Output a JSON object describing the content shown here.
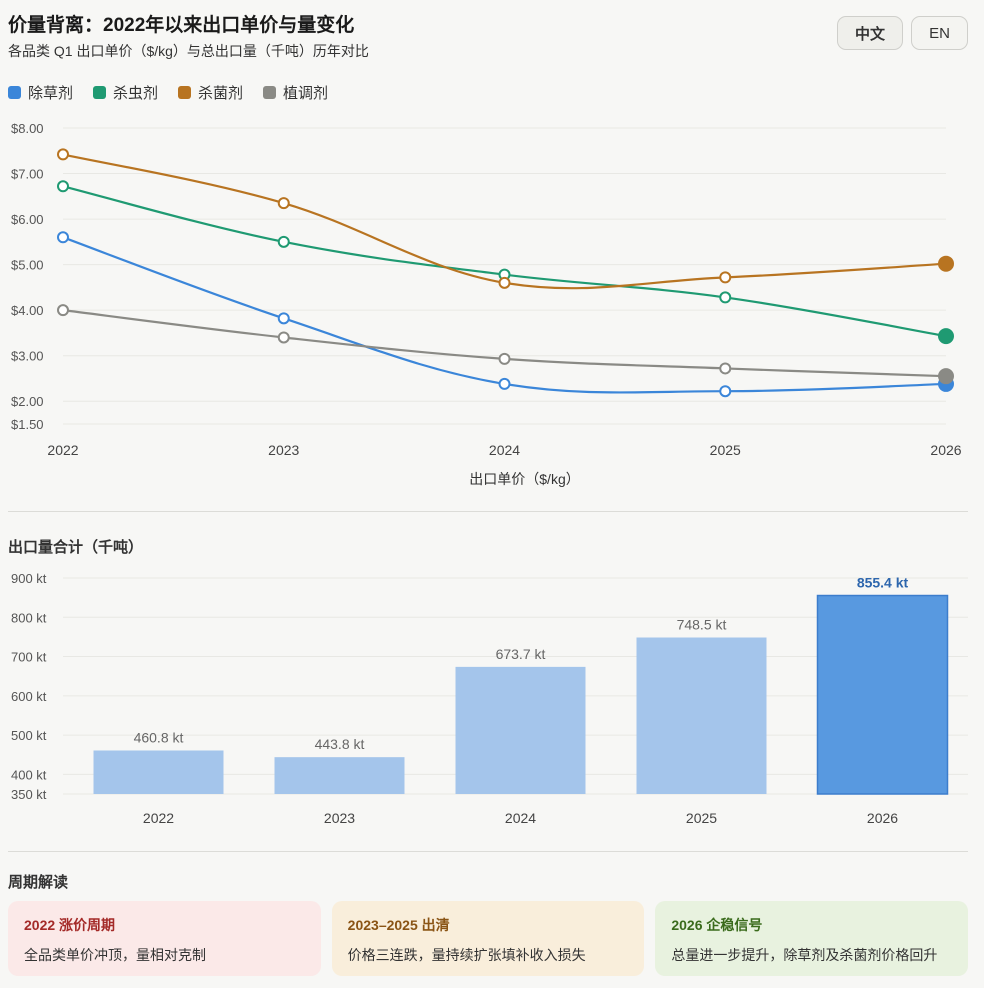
{
  "header": {
    "title": "价量背离：2022年以来出口单价与量变化",
    "subtitle": "各品类 Q1 出口单价（$/kg）与总出口量（千吨）历年对比",
    "lang_zh": "中文",
    "lang_en": "EN"
  },
  "legend": [
    {
      "label": "除草剂",
      "color": "#3b86d9"
    },
    {
      "label": "杀虫剂",
      "color": "#1f9a72"
    },
    {
      "label": "杀菌剂",
      "color": "#b87421"
    },
    {
      "label": "植调剂",
      "color": "#8a8a85"
    }
  ],
  "chart_data": [
    {
      "type": "line",
      "title": "",
      "xlabel": "出口单价（$/kg）",
      "ylabel": "",
      "x": [
        "2022",
        "2023",
        "2024",
        "2025",
        "2026"
      ],
      "ylim": [
        1.5,
        8.0
      ],
      "y_ticks": [
        "$8.00",
        "$7.00",
        "$6.00",
        "$5.00",
        "$4.00",
        "$3.00",
        "$2.00",
        "$1.50"
      ],
      "y_tick_values": [
        8,
        7,
        6,
        5,
        4,
        3,
        2,
        1.5
      ],
      "grid": true,
      "series": [
        {
          "name": "除草剂",
          "color": "#3b86d9",
          "values": [
            5.6,
            3.82,
            2.38,
            2.22,
            2.38
          ]
        },
        {
          "name": "杀虫剂",
          "color": "#1f9a72",
          "values": [
            6.72,
            5.5,
            4.78,
            4.28,
            3.43
          ]
        },
        {
          "name": "杀菌剂",
          "color": "#b87421",
          "values": [
            7.42,
            6.35,
            4.6,
            4.72,
            5.02
          ]
        },
        {
          "name": "植调剂",
          "color": "#8a8a85",
          "values": [
            4.0,
            3.4,
            2.93,
            2.72,
            2.55
          ]
        }
      ]
    },
    {
      "type": "bar",
      "title": "出口量合计（千吨）",
      "categories": [
        "2022",
        "2023",
        "2024",
        "2025",
        "2026"
      ],
      "values": [
        460.8,
        443.8,
        673.7,
        748.5,
        855.4
      ],
      "value_labels": [
        "460.8 kt",
        "443.8 kt",
        "673.7 kt",
        "748.5 kt",
        "855.4 kt"
      ],
      "ylim": [
        350,
        900
      ],
      "y_ticks": [
        "900 kt",
        "800 kt",
        "700 kt",
        "600 kt",
        "500 kt",
        "400 kt",
        "350 kt"
      ],
      "y_tick_values": [
        900,
        800,
        700,
        600,
        500,
        400,
        350
      ],
      "bar_color": "#a4c5eb",
      "highlight_color": "#5899e0",
      "highlight_label_color": "#2d66ad",
      "grid": true
    }
  ],
  "cycle": {
    "title": "周期解读",
    "cards": [
      {
        "title": "2022 涨价周期",
        "text": "全品类单价冲顶，量相对克制",
        "bg": "#fbe9e8",
        "title_color": "#a42a28"
      },
      {
        "title": "2023–2025 出清",
        "text": "价格三连跌，量持续扩张填补收入损失",
        "bg": "#f9eedb",
        "title_color": "#8a5415"
      },
      {
        "title": "2026 企稳信号",
        "text": "总量进一步提升，除草剂及杀菌剂价格回升",
        "bg": "#e8f2df",
        "title_color": "#3a6b1c"
      }
    ]
  }
}
